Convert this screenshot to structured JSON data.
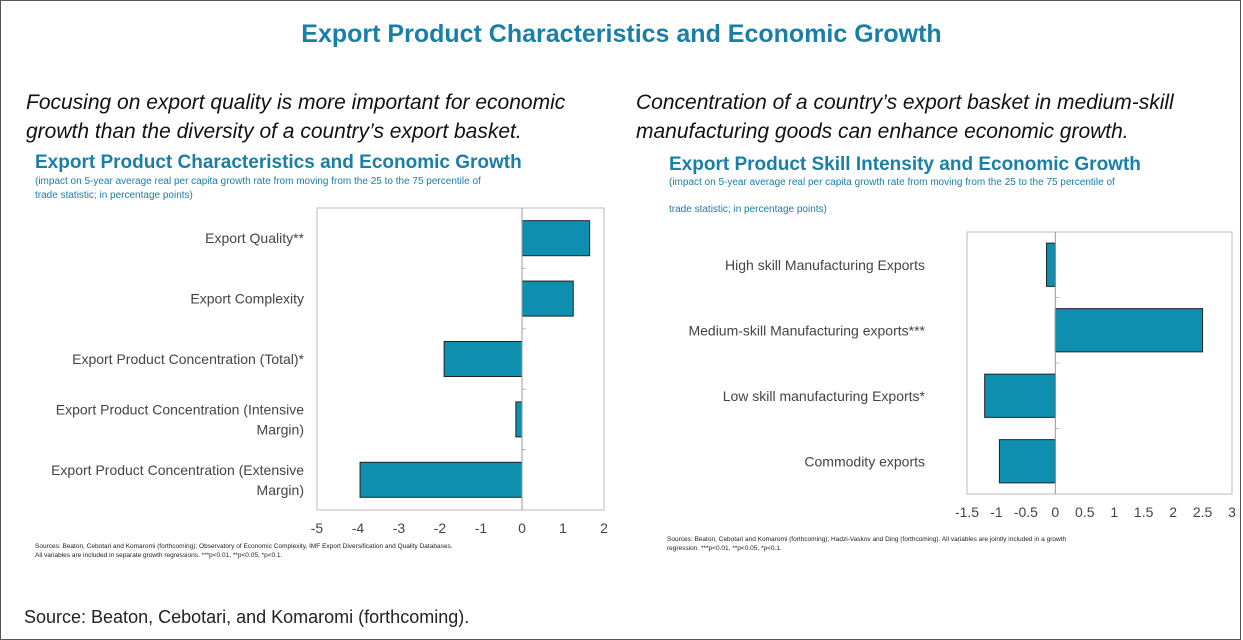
{
  "header": {
    "title": "Export Product Characteristics and Economic Growth"
  },
  "left": {
    "subhead_lines": [
      "Focusing on export quality is more important for economic",
      "growth than the diversity of a country’s export basket."
    ],
    "title": "Export Product Characteristics and Economic Growth",
    "subtitle_lines": [
      "(impact on 5-year average real per capita growth rate from moving from the 25 to the 75 percentile of",
      "trade statistic; in percentage points)"
    ],
    "source_lines": [
      "Sources: Beaton, Cebotari and Komaromi (forthcoming); Observatory of Economic Complexity, IMF Export Diversification and Quality Databases.",
      "All variables are included in separate growth regressions. ***p<0.01, **p<0.05, *p<0.1."
    ]
  },
  "right": {
    "subhead_lines": [
      "Concentration of a country’s export basket in medium-skill",
      "manufacturing goods can enhance economic growth."
    ],
    "title": "Export Product Skill Intensity and Economic Growth",
    "subtitle_lines": [
      "(impact on 5-year average real per capita growth rate from moving from the 25 to the 75 percentile of",
      "trade statistic; in percentage points)"
    ],
    "source_lines": [
      "Sources: Beaton, Cebotari and Komaromi (forthcoming); Hadzi-Vaskov and Ding (forthcoming). All variables are jointly included in a growth",
      "regression. ***p<0.01, **p<0.05, *p<0.1."
    ]
  },
  "footer": {
    "source": "Source: Beaton, Cebotari, and Komaromi (forthcoming)."
  },
  "chart_data": [
    {
      "type": "bar",
      "orientation": "horizontal",
      "title": "Export Product Characteristics and Economic Growth",
      "categories": [
        [
          "Export Quality**"
        ],
        [
          "Export Complexity"
        ],
        [
          "Export Product Concentration (Total)*"
        ],
        [
          "Export Product Concentration (Intensive",
          "Margin)"
        ],
        [
          "Export Product Concentration (Extensive",
          "Margin)"
        ]
      ],
      "values": [
        1.65,
        1.25,
        -1.9,
        -0.15,
        -3.95
      ],
      "xlim": [
        -5,
        2
      ],
      "ticks": [
        "-5",
        "-4",
        "-3",
        "-2",
        "-1",
        "0",
        "1",
        "2"
      ],
      "bar_color": "#0f8fb0"
    },
    {
      "type": "bar",
      "orientation": "horizontal",
      "title": "Export Product Skill Intensity and Economic Growth",
      "categories": [
        [
          "High skill Manufacturing Exports"
        ],
        [
          "Medium-skill Manufacturing exports***"
        ],
        [
          "Low skill manufacturing Exports*"
        ],
        [
          "Commodity exports"
        ]
      ],
      "values": [
        -0.15,
        2.5,
        -1.2,
        -0.95
      ],
      "xlim": [
        -1.5,
        3
      ],
      "ticks": [
        "-1.5",
        "-1",
        "-0.5",
        "0",
        "0.5",
        "1",
        "1.5",
        "2",
        "2.5",
        "3"
      ],
      "bar_color": "#0f8fb0"
    }
  ]
}
